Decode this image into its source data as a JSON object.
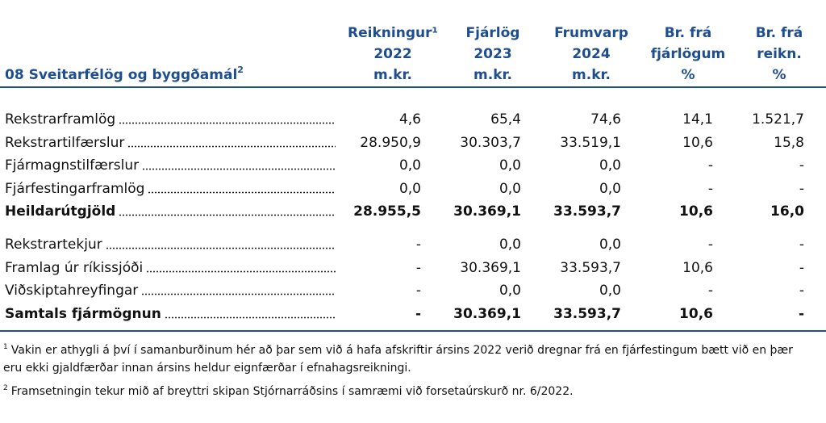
{
  "header": {
    "title": "08 Sveitarfélög og byggðamál",
    "title_note": "2",
    "columns": [
      [
        "Reikningur¹",
        "2022",
        "m.kr."
      ],
      [
        "Fjárlög",
        "2023",
        "m.kr."
      ],
      [
        "Frumvarp",
        "2024",
        "m.kr."
      ],
      [
        "Br. frá",
        "fjárlögum",
        "%"
      ],
      [
        "Br. frá",
        "reikn.",
        "%"
      ]
    ]
  },
  "table": {
    "sections": [
      [
        {
          "label": "Rekstrarframlög",
          "values": [
            "4,6",
            "65,4",
            "74,6",
            "14,1",
            "1.521,7"
          ],
          "bold": false
        },
        {
          "label": "Rekstrartilfærslur",
          "values": [
            "28.950,9",
            "30.303,7",
            "33.519,1",
            "10,6",
            "15,8"
          ],
          "bold": false
        },
        {
          "label": "Fjármagnstilfærslur",
          "values": [
            "0,0",
            "0,0",
            "0,0",
            "-",
            "-"
          ],
          "bold": false
        },
        {
          "label": "Fjárfestingarframlög",
          "values": [
            "0,0",
            "0,0",
            "0,0",
            "-",
            "-"
          ],
          "bold": false
        },
        {
          "label": "Heildarútgjöld",
          "values": [
            "28.955,5",
            "30.369,1",
            "33.593,7",
            "10,6",
            "16,0"
          ],
          "bold": true
        }
      ],
      [
        {
          "label": "Rekstrartekjur",
          "values": [
            "-",
            "0,0",
            "0,0",
            "-",
            "-"
          ],
          "bold": false
        },
        {
          "label": "Framlag úr ríkissjóði",
          "values": [
            "-",
            "30.369,1",
            "33.593,7",
            "10,6",
            "-"
          ],
          "bold": false
        },
        {
          "label": "Viðskiptahreyfingar",
          "values": [
            "-",
            "0,0",
            "0,0",
            "-",
            "-"
          ],
          "bold": false
        },
        {
          "label": "Samtals fjármögnun",
          "values": [
            "-",
            "30.369,1",
            "33.593,7",
            "10,6",
            "-"
          ],
          "bold": true
        }
      ]
    ]
  },
  "footnotes": [
    {
      "mark": "1",
      "lines": [
        "Vakin er athygli á því í samanburðinum hér að þar sem við á hafa afskriftir ársins 2022 verið dregnar frá en fjárfestingum bætt við en þær",
        "eru ekki gjaldfærðar innan ársins heldur eignfærðar í efnahagsreikningi."
      ]
    },
    {
      "mark": "2",
      "lines": [
        "Framsetningin tekur mið af breyttri skipan Stjórnarráðsins í samræmi við forsetaúrskurð nr. 6/2022."
      ]
    }
  ]
}
